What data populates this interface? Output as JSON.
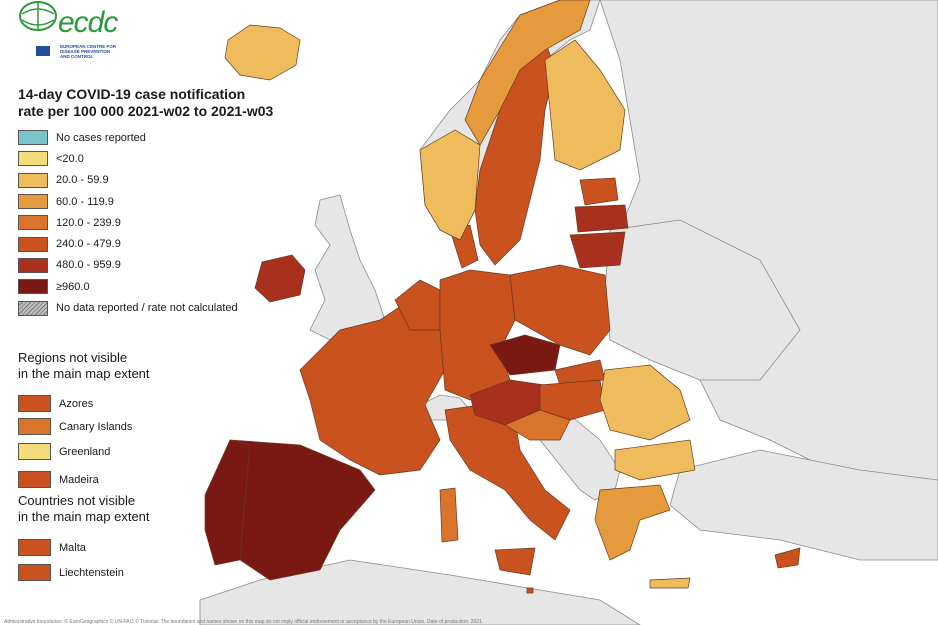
{
  "logo": {
    "word": "ecdc",
    "subtitle_lines": [
      "EUROPEAN CENTRE FOR",
      "DISEASE PREVENTION",
      "AND CONTROL"
    ]
  },
  "legend": {
    "title_line1": "14-day COVID-19 case notification",
    "title_line2": "rate per 100 000 2021-w02 to 2021-w03",
    "items": [
      {
        "label": "No cases reported",
        "color": "#7ac4cc"
      },
      {
        "label": "<20.0",
        "color": "#f5dc7a"
      },
      {
        "label": "20.0 - 59.9",
        "color": "#eebc5c"
      },
      {
        "label": "60.0 - 119.9",
        "color": "#e59a3d"
      },
      {
        "label": "120.0 - 239.9",
        "color": "#d9742a"
      },
      {
        "label": "240.0 - 479.9",
        "color": "#c9521f"
      },
      {
        "label": "480.0 - 959.9",
        "color": "#a8301d"
      },
      {
        "label": "≥960.0",
        "color": "#7a1813"
      },
      {
        "label": "No data reported / rate not calculated",
        "color": "hatched-grey"
      }
    ]
  },
  "regions_section": {
    "title_line1": "Regions not visible",
    "title_line2": "in the main map extent",
    "items": [
      {
        "label": "Azores",
        "color": "#c9521f"
      },
      {
        "label": "Canary Islands",
        "color": "#d9742a"
      },
      {
        "label": "Greenland",
        "color": "#f5dc7a"
      },
      {
        "label": "Madeira",
        "color": "#c9521f"
      }
    ]
  },
  "countries_section": {
    "title_line1": "Countries not visible",
    "title_line2": "in the main map extent",
    "items": [
      {
        "label": "Malta",
        "color": "#c9521f"
      },
      {
        "label": "Liechtenstein",
        "color": "#c9521f"
      }
    ]
  },
  "footer": "Administrative boundaries: © EuroGeographics © UN-FAO © Turkstat. The boundaries and names shown on this map do not imply official endorsement or acceptance by the European Union. Date of production: 2021.",
  "colors": {
    "sea": "#ffffff",
    "non_eu_land": "#e6e6e6",
    "border": "#6b3a1f"
  }
}
